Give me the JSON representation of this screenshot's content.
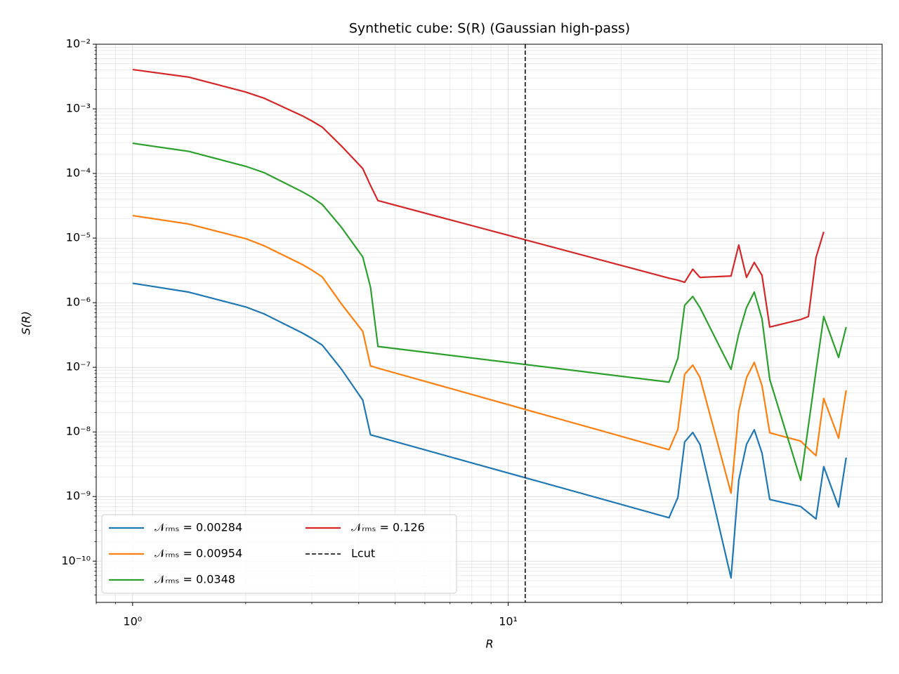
{
  "chart_data": {
    "type": "line",
    "title": "Synthetic cube: S(R) (Gaussian high-pass)",
    "xlabel": "R",
    "ylabel": "S(R)",
    "xscale": "log",
    "yscale": "log",
    "grid": true,
    "legend": "lower left",
    "xlim": [
      0.8,
      99
    ],
    "ylim": [
      2.3e-11,
      0.01
    ],
    "xticks": [
      {
        "value": 1,
        "label": "10⁰"
      },
      {
        "value": 10,
        "label": "10¹"
      }
    ],
    "x_minor_ticks": [
      0.8,
      0.9,
      2,
      3,
      4,
      5,
      6,
      7,
      8,
      9,
      20,
      30,
      40,
      50,
      60,
      70,
      80,
      90
    ],
    "yticks": [
      {
        "value": 1e-10,
        "label": "10⁻¹⁰"
      },
      {
        "value": 1e-09,
        "label": "10⁻⁹"
      },
      {
        "value": 1e-08,
        "label": "10⁻⁸"
      },
      {
        "value": 1e-07,
        "label": "10⁻⁷"
      },
      {
        "value": 1e-06,
        "label": "10⁻⁶"
      },
      {
        "value": 1e-05,
        "label": "10⁻⁵"
      },
      {
        "value": 0.0001,
        "label": "10⁻⁴"
      },
      {
        "value": 0.001,
        "label": "10⁻³"
      },
      {
        "value": 0.01,
        "label": "10⁻²"
      }
    ],
    "y_minor_ticks": [
      3e-11,
      4e-11,
      5e-11,
      6e-11,
      7e-11,
      8e-11,
      9e-11,
      2e-10,
      3e-10,
      4e-10,
      5e-10,
      6e-10,
      7e-10,
      8e-10,
      9e-10,
      2e-09,
      3e-09,
      4e-09,
      5e-09,
      6e-09,
      7e-09,
      8e-09,
      9e-09,
      2e-08,
      3e-08,
      4e-08,
      5e-08,
      6e-08,
      7e-08,
      8e-08,
      9e-08,
      2e-07,
      3e-07,
      4e-07,
      5e-07,
      6e-07,
      7e-07,
      8e-07,
      9e-07,
      2e-06,
      3e-06,
      4e-06,
      5e-06,
      6e-06,
      7e-06,
      8e-06,
      9e-06,
      2e-05,
      3e-05,
      4e-05,
      5e-05,
      6e-05,
      7e-05,
      8e-05,
      9e-05,
      0.0002,
      0.0003,
      0.0004,
      0.0005,
      0.0006,
      0.0007,
      0.0008,
      0.0009,
      0.002,
      0.003,
      0.004,
      0.005,
      0.006,
      0.007,
      0.008,
      0.009
    ],
    "x": [
      1,
      1.41,
      2,
      2.24,
      2.83,
      3,
      3.2,
      3.6,
      4.1,
      4.3,
      4.5,
      26.8,
      28.3,
      29.5,
      31,
      32.4,
      39.2,
      41.1,
      43.1,
      45.2,
      47.4,
      49.7,
      60.1,
      63,
      66,
      69.2,
      75.8,
      79.4
    ],
    "series": [
      {
        "name": "𝒩ᵣₘₛ = 0.00284",
        "color": "#1f77b4",
        "values": [
          2e-06,
          1.46e-06,
          8.6e-07,
          6.7e-07,
          3.4e-07,
          2.8e-07,
          2.2e-07,
          9.3e-08,
          3.1e-08,
          9e-09,
          8.4e-09,
          4.7e-10,
          9.7e-10,
          7e-09,
          9.8e-09,
          6.4e-09,
          5.5e-11,
          1.78e-09,
          6.4e-09,
          1.08e-08,
          4.7e-09,
          9e-10,
          7e-10,
          5.6e-10,
          4.5e-10,
          2.9e-09,
          6.9e-10,
          4e-09
        ]
      },
      {
        "name": "𝒩ᵣₘₛ = 0.00954",
        "color": "#ff7f0e",
        "values": [
          2.23e-05,
          1.65e-05,
          9.8e-06,
          7.6e-06,
          3.9e-06,
          3.2e-06,
          2.5e-06,
          9.5e-07,
          3.6e-07,
          1.05e-07,
          9.7e-08,
          5.3e-09,
          1.1e-08,
          7.8e-08,
          1.08e-07,
          7e-08,
          1.13e-09,
          2.1e-08,
          6.9e-08,
          1.19e-07,
          5.2e-08,
          9.7e-09,
          7.2e-09,
          5.5e-09,
          4.3e-09,
          3.3e-08,
          8e-09,
          4.4e-08
        ]
      },
      {
        "name": "𝒩ᵣₘₛ = 0.0348",
        "color": "#2ca02c",
        "values": [
          0.000293,
          0.00022,
          0.000129,
          0.000103,
          5.2e-05,
          4.3e-05,
          3.3e-05,
          1.46e-05,
          5.1e-06,
          1.73e-06,
          2.1e-07,
          5.9e-08,
          1.38e-07,
          9.1e-07,
          1.25e-06,
          8.4e-07,
          9.3e-08,
          3.3e-07,
          8.4e-07,
          1.46e-06,
          5.6e-07,
          6.5e-08,
          1.78e-09,
          1.25e-08,
          8.8e-08,
          6.1e-07,
          1.42e-07,
          4.2e-07
        ]
      },
      {
        "name": "𝒩ᵣₘₛ = 0.126",
        "color": "#d62728",
        "values": [
          0.00406,
          0.0031,
          0.00182,
          0.00146,
          0.00078,
          0.00065,
          0.00052,
          0.000265,
          0.000119,
          6.5e-05,
          3.8e-05,
          2.4e-06,
          2.23e-06,
          2.07e-06,
          3.3e-06,
          2.46e-06,
          2.59e-06,
          7.8e-06,
          2.46e-06,
          4.2e-06,
          2.65e-06,
          4.2e-07,
          5.5e-07,
          6.1e-07,
          5e-06,
          1.25e-05,
          null,
          null
        ]
      }
    ],
    "vline": {
      "x": 11.1,
      "name": "Lcut",
      "color": "#000000"
    }
  }
}
